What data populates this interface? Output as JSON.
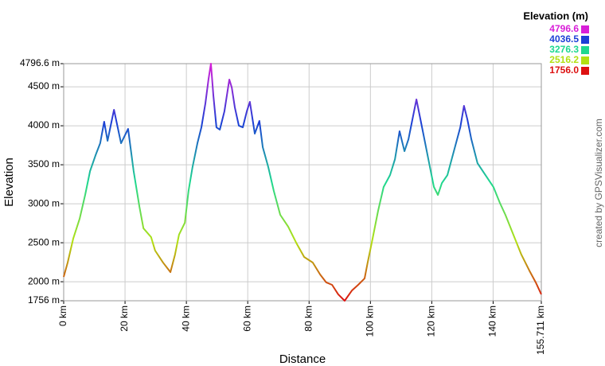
{
  "chart_data": {
    "type": "line",
    "x_label": "Distance",
    "y_label": "Elevation",
    "credit": "created by GPSVisualizer.com",
    "grid": true,
    "xlim": [
      0,
      155.711
    ],
    "ylim": [
      1756,
      4796.6
    ],
    "xticks": [
      {
        "value": 0,
        "label": "0 km"
      },
      {
        "value": 20,
        "label": "20 km"
      },
      {
        "value": 40,
        "label": "40 km"
      },
      {
        "value": 60,
        "label": "60 km"
      },
      {
        "value": 80,
        "label": "80 km"
      },
      {
        "value": 100,
        "label": "100 km"
      },
      {
        "value": 120,
        "label": "120 km"
      },
      {
        "value": 140,
        "label": "140 km"
      },
      {
        "value": 155.711,
        "label": "155.711 km"
      }
    ],
    "yticks": [
      {
        "value": 1756,
        "label": "1756 m"
      },
      {
        "value": 2000,
        "label": "2000 m"
      },
      {
        "value": 2500,
        "label": "2500 m"
      },
      {
        "value": 3000,
        "label": "3000 m"
      },
      {
        "value": 3500,
        "label": "3500 m"
      },
      {
        "value": 4000,
        "label": "4000 m"
      },
      {
        "value": 4500,
        "label": "4500 m"
      },
      {
        "value": 4796.6,
        "label": "4796.6 m"
      }
    ],
    "legend": {
      "title": "Elevation (m)",
      "entries": [
        {
          "value": 4796.6,
          "color": "#d81fd8"
        },
        {
          "value": 4036.5,
          "color": "#1c3fd6"
        },
        {
          "value": 3276.3,
          "color": "#1ed890"
        },
        {
          "value": 2516.2,
          "color": "#b2e012"
        },
        {
          "value": 1756,
          "label": "1756.0",
          "color": "#dd1111"
        }
      ]
    },
    "x": [
      0,
      1.3,
      3.1,
      5.2,
      7,
      8.6,
      10.4,
      11.9,
      13.2,
      14.3,
      16.4,
      18.7,
      21,
      22.8,
      24.7,
      26,
      28.5,
      29.8,
      32.4,
      34.8,
      36.3,
      37.6,
      39.5,
      40.7,
      42,
      43.6,
      44.9,
      46.2,
      47.2,
      48,
      48.8,
      49.8,
      50.9,
      52.4,
      54,
      54.8,
      55.8,
      57.1,
      58.4,
      59.7,
      60.7,
      62.3,
      63.8,
      64.9,
      66.7,
      68.5,
      70.6,
      73.2,
      75.8,
      78.4,
      81.2,
      83.6,
      85.6,
      87.5,
      89.5,
      91.6,
      94,
      96,
      98.1,
      99.1,
      100.7,
      102.5,
      104.3,
      106.4,
      108,
      109.5,
      111.1,
      112.4,
      113.7,
      115,
      116.3,
      117.6,
      119.4,
      120.7,
      122,
      123.3,
      125.1,
      127.2,
      129.3,
      130.5,
      131.6,
      132.9,
      134.9,
      137.5,
      140.1,
      142.2,
      144,
      146.6,
      149.2,
      151.8,
      153.9,
      155.7
    ],
    "values": [
      2062,
      2246,
      2552,
      2807,
      3113,
      3419,
      3623,
      3776,
      4052,
      3807,
      4205,
      3776,
      3960,
      3419,
      2960,
      2685,
      2572,
      2400,
      2245,
      2123,
      2348,
      2603,
      2756,
      3164,
      3470,
      3776,
      3980,
      4287,
      4593,
      4797,
      4388,
      3980,
      3950,
      4185,
      4593,
      4490,
      4235,
      4001,
      3980,
      4185,
      4307,
      3899,
      4062,
      3725,
      3470,
      3164,
      2858,
      2705,
      2500,
      2317,
      2246,
      2093,
      1991,
      1960,
      1838,
      1756,
      1889,
      1960,
      2042,
      2246,
      2552,
      2909,
      3215,
      3368,
      3572,
      3930,
      3674,
      3827,
      4083,
      4338,
      4083,
      3827,
      3470,
      3215,
      3113,
      3266,
      3368,
      3674,
      3980,
      4256,
      4083,
      3827,
      3521,
      3368,
      3215,
      3011,
      2858,
      2603,
      2348,
      2144,
      1991,
      1838
    ]
  }
}
